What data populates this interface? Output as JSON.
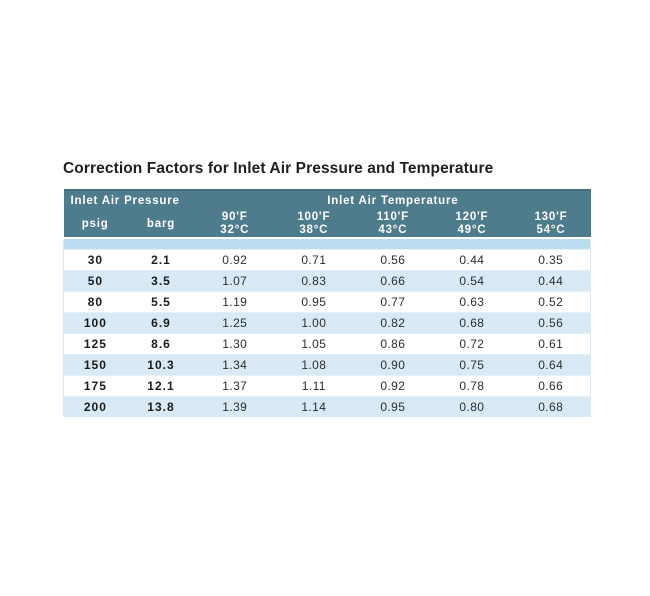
{
  "title": "Correction Factors for Inlet Air Pressure and Temperature",
  "colors": {
    "header_bg": "#4f7c8c",
    "header_top_edge": "#45717f",
    "header_text": "#ffffff",
    "spacer_row": "#badeef",
    "row_alt": "#d9eaf6",
    "row_white": "#ffffff",
    "title_text": "#1f1f1f",
    "data_text": "#2d2d2d"
  },
  "table": {
    "group_headers": [
      "Inlet Air Pressure",
      "Inlet Air Temperature"
    ],
    "pressure_columns": [
      "psig",
      "barg"
    ],
    "temp_columns": [
      {
        "f": "90'F",
        "c": "32°C"
      },
      {
        "f": "100'F",
        "c": "38°C"
      },
      {
        "f": "110'F",
        "c": "43°C"
      },
      {
        "f": "120'F",
        "c": "49°C"
      },
      {
        "f": "130'F",
        "c": "54°C"
      }
    ],
    "rows": [
      {
        "psig": "30",
        "barg": "2.1",
        "factors": [
          "0.92",
          "0.71",
          "0.56",
          "0.44",
          "0.35"
        ]
      },
      {
        "psig": "50",
        "barg": "3.5",
        "factors": [
          "1.07",
          "0.83",
          "0.66",
          "0.54",
          "0.44"
        ]
      },
      {
        "psig": "80",
        "barg": "5.5",
        "factors": [
          "1.19",
          "0.95",
          "0.77",
          "0.63",
          "0.52"
        ]
      },
      {
        "psig": "100",
        "barg": "6.9",
        "factors": [
          "1.25",
          "1.00",
          "0.82",
          "0.68",
          "0.56"
        ]
      },
      {
        "psig": "125",
        "barg": "8.6",
        "factors": [
          "1.30",
          "1.05",
          "0.86",
          "0.72",
          "0.61"
        ]
      },
      {
        "psig": "150",
        "barg": "10.3",
        "factors": [
          "1.34",
          "1.08",
          "0.90",
          "0.75",
          "0.64"
        ]
      },
      {
        "psig": "175",
        "barg": "12.1",
        "factors": [
          "1.37",
          "1.11",
          "0.92",
          "0.78",
          "0.66"
        ]
      },
      {
        "psig": "200",
        "barg": "13.8",
        "factors": [
          "1.39",
          "1.14",
          "0.95",
          "0.80",
          "0.68"
        ]
      }
    ]
  }
}
